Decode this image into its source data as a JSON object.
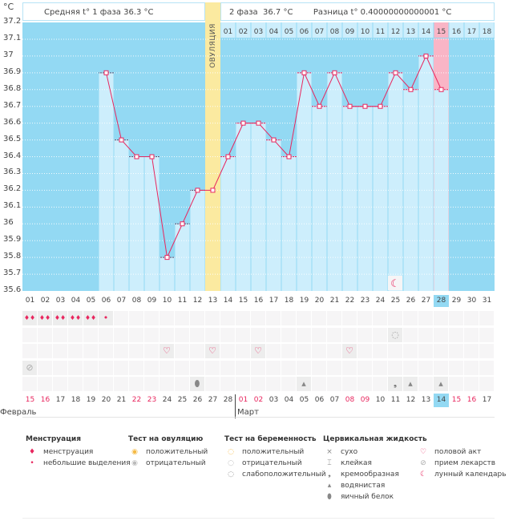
{
  "header": {
    "unit": "°C",
    "phase1": "Средняя t° 1 фаза  36.3 °C",
    "phase2": "2 фаза  36.7 °C",
    "diff": "Разница t° 0.40000000000001 °C",
    "ovulation": "ОВУЛЯЦИЯ"
  },
  "colors": {
    "sky": "#93d9f3",
    "bar": "#cdeefc",
    "ovulation": "#fbeaa0",
    "today": "#f9b5c6",
    "line": "#e8265e"
  },
  "chart_data": {
    "type": "line",
    "ylim": [
      35.6,
      37.2
    ],
    "yticks": [
      "37.2",
      "37.1",
      "37",
      "36.9",
      "36.8",
      "36.7",
      "36.6",
      "36.5",
      "36.4",
      "36.3",
      "36.2",
      "36.1",
      "36",
      "35.9",
      "35.8",
      "35.7",
      "35.6"
    ],
    "days": [
      "01",
      "02",
      "03",
      "04",
      "05",
      "06",
      "07",
      "08",
      "09",
      "10",
      "11",
      "12",
      "13",
      "14",
      "15",
      "16",
      "17",
      "18",
      "19",
      "20",
      "21",
      "22",
      "23",
      "24",
      "25",
      "26",
      "27",
      "28",
      "29",
      "30",
      "31"
    ],
    "temps": [
      null,
      null,
      null,
      null,
      null,
      36.9,
      36.5,
      36.4,
      36.4,
      35.8,
      36.0,
      36.2,
      36.2,
      36.4,
      36.6,
      36.6,
      36.5,
      36.4,
      36.9,
      36.7,
      36.9,
      36.7,
      36.7,
      36.7,
      36.9,
      36.8,
      37.0,
      36.8,
      null,
      null,
      null
    ],
    "ovulation_day": 13,
    "today_day": 28,
    "phase2_days": [
      "01",
      "02",
      "03",
      "04",
      "05",
      "06",
      "07",
      "08",
      "09",
      "10",
      "11",
      "12",
      "13",
      "14",
      "15",
      "16",
      "17",
      "18"
    ]
  },
  "dates": [
    "15",
    "16",
    "17",
    "18",
    "19",
    "20",
    "21",
    "22",
    "23",
    "24",
    "25",
    "26",
    "27",
    "28",
    "01",
    "02",
    "03",
    "04",
    "05",
    "06",
    "07",
    "08",
    "09",
    "10",
    "11",
    "12",
    "13",
    "14",
    "15",
    "16",
    "17"
  ],
  "weekend_idx": [
    0,
    1,
    7,
    8,
    14,
    15,
    21,
    22,
    28,
    29
  ],
  "months": [
    "Февраль",
    "Март"
  ],
  "marks": [
    {
      "row": 0,
      "day": 1,
      "icon": "menstruation"
    },
    {
      "row": 0,
      "day": 2,
      "icon": "menstruation"
    },
    {
      "row": 0,
      "day": 3,
      "icon": "menstruation"
    },
    {
      "row": 0,
      "day": 4,
      "icon": "menstruation"
    },
    {
      "row": 0,
      "day": 5,
      "icon": "menstruation"
    },
    {
      "row": 0,
      "day": 6,
      "icon": "spotting"
    },
    {
      "row": 1,
      "day": 25,
      "icon": "pregnancy-negative"
    },
    {
      "row": 2,
      "day": 10,
      "icon": "intercourse"
    },
    {
      "row": 2,
      "day": 13,
      "icon": "intercourse"
    },
    {
      "row": 2,
      "day": 16,
      "icon": "intercourse"
    },
    {
      "row": 2,
      "day": 22,
      "icon": "intercourse"
    },
    {
      "row": 3,
      "day": 1,
      "icon": "medication"
    },
    {
      "row": 4,
      "day": 12,
      "icon": "egg-white"
    },
    {
      "row": 4,
      "day": 19,
      "icon": "watery"
    },
    {
      "row": 4,
      "day": 25,
      "icon": "creamy"
    },
    {
      "row": 4,
      "day": 26,
      "icon": "watery"
    },
    {
      "row": 4,
      "day": 28,
      "icon": "watery"
    }
  ],
  "moon_day": 25,
  "legend": [
    {
      "title": "Менструация",
      "items": [
        {
          "icon": "menstruation",
          "label": "менструация"
        },
        {
          "icon": "spotting",
          "label": "небольшие выделения"
        }
      ]
    },
    {
      "title": "Тест на овуляцию",
      "items": [
        {
          "icon": "ovulation-positive",
          "label": "положительный"
        },
        {
          "icon": "ovulation-negative",
          "label": "отрицательный"
        }
      ]
    },
    {
      "title": "Тест на беременность",
      "items": [
        {
          "icon": "pregnancy-positive",
          "label": "положительный"
        },
        {
          "icon": "pregnancy-negative",
          "label": "отрицательный"
        },
        {
          "icon": "pregnancy-weak",
          "label": "слабоположительный"
        }
      ]
    },
    {
      "title": "Цервикальная жидкость",
      "items": [
        {
          "icon": "dry",
          "label": "сухо"
        },
        {
          "icon": "sticky",
          "label": "клейкая"
        },
        {
          "icon": "creamy",
          "label": "кремообразная"
        },
        {
          "icon": "watery",
          "label": "водянистая"
        },
        {
          "icon": "egg-white",
          "label": "яичный белок"
        }
      ]
    },
    {
      "title": "",
      "items": [
        {
          "icon": "intercourse",
          "label": "половой акт"
        },
        {
          "icon": "medication",
          "label": "прием лекарств"
        },
        {
          "icon": "moon",
          "label": "лунный календарь"
        }
      ]
    }
  ]
}
